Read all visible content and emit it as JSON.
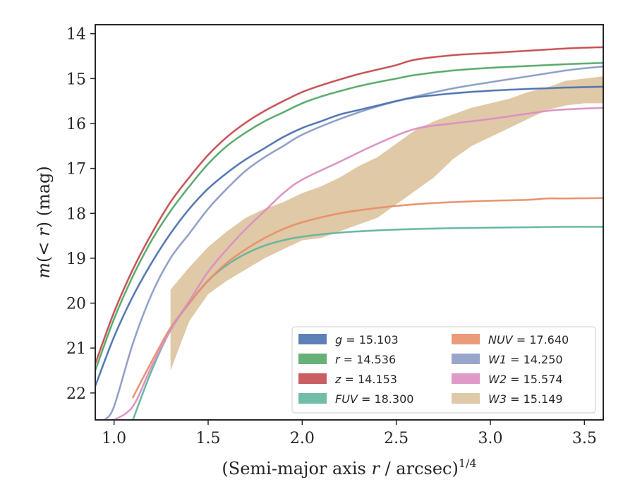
{
  "chart_data": {
    "type": "line",
    "title": "",
    "xlabel": "(Semi-major axis r / arcsec)^1/4",
    "xlabel_parts": {
      "main": "(Semi-major axis ",
      "var": "r",
      "rest": " / arcsec)",
      "sup": "1/4"
    },
    "ylabel": "m(< r) (mag)",
    "ylabel_parts": {
      "var": "m",
      "rest": "(< ",
      "var2": "r",
      "rest2": ") (mag)"
    },
    "xlim": [
      0.9,
      3.6
    ],
    "ylim": [
      22.6,
      13.8
    ],
    "y_inverted": true,
    "xticks": [
      "1.0",
      "1.5",
      "2.0",
      "2.5",
      "3.0",
      "3.5"
    ],
    "xtick_values": [
      1.0,
      1.5,
      2.0,
      2.5,
      3.0,
      3.5
    ],
    "yticks": [
      "14",
      "15",
      "16",
      "17",
      "18",
      "19",
      "20",
      "21",
      "22"
    ],
    "ytick_values": [
      14,
      15,
      16,
      17,
      18,
      19,
      20,
      21,
      22
    ],
    "grid": false,
    "legend_placement": "lower-right",
    "series": [
      {
        "key": "g",
        "label": "g = 15.103",
        "name_var": "g",
        "value": "15.103",
        "color": "#4c72b0",
        "x": [
          0.9,
          1.0,
          1.1,
          1.2,
          1.3,
          1.4,
          1.5,
          1.6,
          1.7,
          1.8,
          1.9,
          2.0,
          2.1,
          2.2,
          2.3,
          2.4,
          2.5,
          2.6,
          2.8,
          3.0,
          3.2,
          3.4,
          3.6
        ],
        "y": [
          21.85,
          20.75,
          19.85,
          19.1,
          18.45,
          17.9,
          17.45,
          17.1,
          16.8,
          16.55,
          16.3,
          16.1,
          15.95,
          15.8,
          15.7,
          15.6,
          15.5,
          15.42,
          15.33,
          15.27,
          15.23,
          15.2,
          15.18
        ]
      },
      {
        "key": "r",
        "label": "r = 14.536",
        "name_var": "r",
        "value": "14.536",
        "color": "#55a868",
        "x": [
          0.9,
          1.0,
          1.1,
          1.2,
          1.3,
          1.4,
          1.5,
          1.6,
          1.7,
          1.8,
          1.9,
          2.0,
          2.1,
          2.2,
          2.3,
          2.4,
          2.5,
          2.6,
          2.8,
          3.0,
          3.2,
          3.4,
          3.6
        ],
        "y": [
          21.5,
          20.35,
          19.4,
          18.6,
          17.95,
          17.4,
          16.9,
          16.5,
          16.2,
          15.95,
          15.75,
          15.55,
          15.4,
          15.28,
          15.17,
          15.08,
          15.0,
          14.92,
          14.82,
          14.76,
          14.72,
          14.68,
          14.65
        ]
      },
      {
        "key": "z",
        "label": "z = 14.153",
        "name_var": "z",
        "value": "14.153",
        "color": "#c44e52",
        "x": [
          0.9,
          1.0,
          1.1,
          1.2,
          1.3,
          1.4,
          1.5,
          1.6,
          1.7,
          1.8,
          1.9,
          2.0,
          2.1,
          2.2,
          2.3,
          2.4,
          2.5,
          2.6,
          2.8,
          3.0,
          3.2,
          3.4,
          3.6
        ],
        "y": [
          21.35,
          20.2,
          19.25,
          18.45,
          17.75,
          17.2,
          16.7,
          16.3,
          15.98,
          15.72,
          15.5,
          15.3,
          15.15,
          15.02,
          14.9,
          14.8,
          14.7,
          14.58,
          14.48,
          14.43,
          14.38,
          14.33,
          14.3
        ]
      },
      {
        "key": "FUV",
        "label": "FUV = 18.300",
        "name_var": "FUV",
        "value": "18.300",
        "color": "#64b5a0",
        "x": [
          1.1,
          1.2,
          1.3,
          1.4,
          1.5,
          1.6,
          1.7,
          1.8,
          1.9,
          2.0,
          2.2,
          2.4,
          2.6,
          2.8,
          3.0,
          3.2,
          3.4,
          3.6
        ],
        "y": [
          22.6,
          21.5,
          20.6,
          20.0,
          19.5,
          19.15,
          18.9,
          18.72,
          18.6,
          18.52,
          18.43,
          18.38,
          18.35,
          18.33,
          18.32,
          18.31,
          18.3,
          18.3
        ]
      },
      {
        "key": "NUV",
        "label": "NUV = 17.640",
        "name_var": "NUV",
        "value": "17.640",
        "color": "#e8906a",
        "x": [
          1.1,
          1.2,
          1.3,
          1.4,
          1.5,
          1.6,
          1.7,
          1.8,
          1.9,
          2.0,
          2.2,
          2.4,
          2.6,
          2.8,
          3.0,
          3.2,
          3.3,
          3.4,
          3.6
        ],
        "y": [
          22.1,
          21.3,
          20.55,
          20.0,
          19.5,
          19.1,
          18.8,
          18.55,
          18.35,
          18.2,
          18.0,
          17.88,
          17.8,
          17.75,
          17.72,
          17.7,
          17.67,
          17.67,
          17.66
        ]
      },
      {
        "key": "W1",
        "label": "W1 = 14.250",
        "name_var": "W1",
        "value": "14.250",
        "color": "#8c9cc4",
        "x": [
          0.95,
          1.0,
          1.1,
          1.2,
          1.3,
          1.4,
          1.5,
          1.6,
          1.7,
          1.8,
          1.9,
          2.0,
          2.2,
          2.4,
          2.6,
          2.8,
          3.0,
          3.2,
          3.4,
          3.5,
          3.6
        ],
        "y": [
          22.6,
          22.3,
          20.9,
          19.8,
          19.0,
          18.45,
          17.9,
          17.45,
          17.05,
          16.75,
          16.5,
          16.25,
          15.9,
          15.62,
          15.4,
          15.22,
          15.08,
          14.95,
          14.82,
          14.77,
          14.73
        ]
      },
      {
        "key": "W2",
        "label": "W2 = 15.574",
        "name_var": "W2",
        "value": "15.574",
        "color": "#db8fc3",
        "x": [
          1.0,
          1.1,
          1.2,
          1.3,
          1.4,
          1.5,
          1.6,
          1.7,
          1.8,
          1.9,
          2.0,
          2.2,
          2.4,
          2.6,
          2.8,
          3.0,
          3.2,
          3.35,
          3.6
        ],
        "y": [
          22.6,
          22.3,
          21.4,
          20.6,
          19.95,
          19.3,
          18.8,
          18.35,
          17.95,
          17.55,
          17.25,
          16.85,
          16.45,
          16.12,
          16.0,
          15.9,
          15.78,
          15.7,
          15.65
        ]
      },
      {
        "key": "W3",
        "label": "W3 = 15.149",
        "name_var": "W3",
        "value": "15.149",
        "color": "#d6b78a",
        "x": [
          1.3,
          1.4,
          1.5,
          1.6,
          1.7,
          1.8,
          1.9,
          2.0,
          2.1,
          2.2,
          2.3,
          2.4,
          2.5,
          2.6,
          2.7,
          2.8,
          2.9,
          3.0,
          3.1,
          3.2,
          3.3,
          3.4,
          3.5,
          3.6
        ],
        "y_low": [
          21.5,
          20.4,
          19.8,
          19.5,
          19.25,
          19.0,
          18.8,
          18.6,
          18.55,
          18.4,
          18.25,
          18.1,
          17.8,
          17.5,
          17.2,
          16.8,
          16.5,
          16.3,
          16.1,
          15.9,
          15.7,
          15.6,
          15.55,
          15.55
        ],
        "y_high": [
          19.7,
          19.2,
          18.75,
          18.4,
          18.1,
          17.9,
          17.75,
          17.55,
          17.4,
          17.2,
          16.95,
          16.75,
          16.45,
          16.15,
          15.95,
          15.8,
          15.65,
          15.55,
          15.45,
          15.3,
          15.2,
          15.05,
          15.0,
          14.95
        ]
      }
    ]
  }
}
